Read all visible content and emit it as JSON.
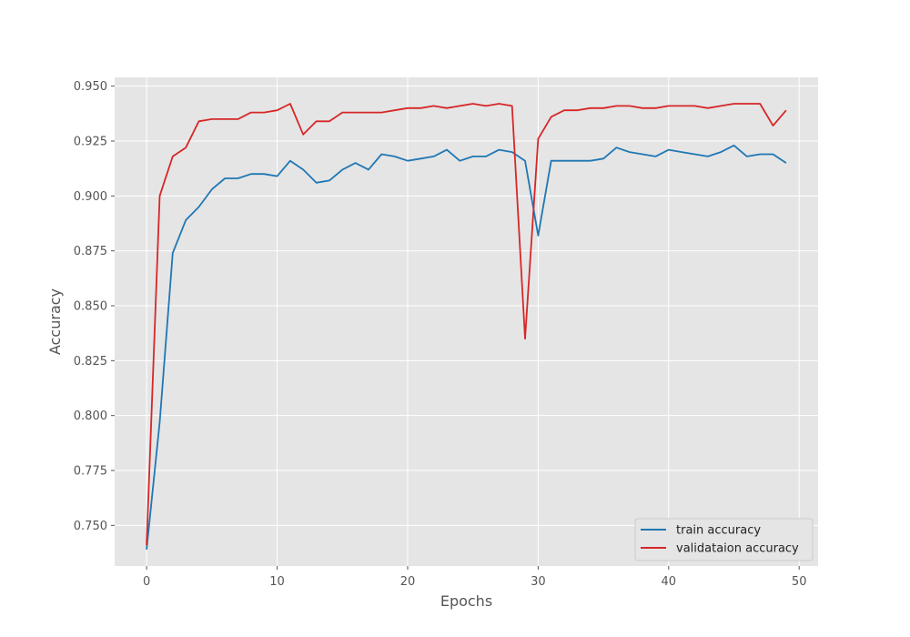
{
  "chart_data": {
    "type": "line",
    "title": "",
    "xlabel": "Epochs",
    "ylabel": "Accuracy",
    "xlim": [
      -2.45,
      51.45
    ],
    "ylim": [
      0.7315,
      0.954
    ],
    "xticks": [
      0,
      10,
      20,
      30,
      40,
      50
    ],
    "yticks": [
      0.75,
      0.775,
      0.8,
      0.825,
      0.85,
      0.875,
      0.9,
      0.925,
      0.95
    ],
    "ytick_labels": [
      "0.750",
      "0.775",
      "0.800",
      "0.825",
      "0.850",
      "0.875",
      "0.900",
      "0.925",
      "0.950"
    ],
    "grid": true,
    "style": "ggplot",
    "legend_position": "lower-right",
    "x": [
      0,
      1,
      2,
      3,
      4,
      5,
      6,
      7,
      8,
      9,
      10,
      11,
      12,
      13,
      14,
      15,
      16,
      17,
      18,
      19,
      20,
      21,
      22,
      23,
      24,
      25,
      26,
      27,
      28,
      29,
      30,
      31,
      32,
      33,
      34,
      35,
      36,
      37,
      38,
      39,
      40,
      41,
      42,
      43,
      44,
      45,
      46,
      47,
      48,
      49
    ],
    "series": [
      {
        "name": "train accuracy",
        "color": "#1f77b4",
        "values": [
          0.739,
          0.797,
          0.874,
          0.889,
          0.895,
          0.903,
          0.908,
          0.908,
          0.91,
          0.91,
          0.909,
          0.916,
          0.912,
          0.906,
          0.907,
          0.912,
          0.915,
          0.912,
          0.919,
          0.918,
          0.916,
          0.917,
          0.918,
          0.921,
          0.916,
          0.918,
          0.918,
          0.921,
          0.92,
          0.916,
          0.882,
          0.916,
          0.916,
          0.916,
          0.916,
          0.917,
          0.922,
          0.92,
          0.919,
          0.918,
          0.921,
          0.92,
          0.919,
          0.918,
          0.92,
          0.923,
          0.918,
          0.919,
          0.919,
          0.915
        ]
      },
      {
        "name": "validataion accuracy",
        "color": "#d62728",
        "values": [
          0.741,
          0.9,
          0.918,
          0.922,
          0.934,
          0.935,
          0.935,
          0.935,
          0.938,
          0.938,
          0.939,
          0.942,
          0.928,
          0.934,
          0.934,
          0.938,
          0.938,
          0.938,
          0.938,
          0.939,
          0.94,
          0.94,
          0.941,
          0.94,
          0.941,
          0.942,
          0.941,
          0.942,
          0.941,
          0.835,
          0.926,
          0.936,
          0.939,
          0.939,
          0.94,
          0.94,
          0.941,
          0.941,
          0.94,
          0.94,
          0.941,
          0.941,
          0.941,
          0.94,
          0.941,
          0.942,
          0.942,
          0.942,
          0.932,
          0.939
        ]
      }
    ]
  }
}
